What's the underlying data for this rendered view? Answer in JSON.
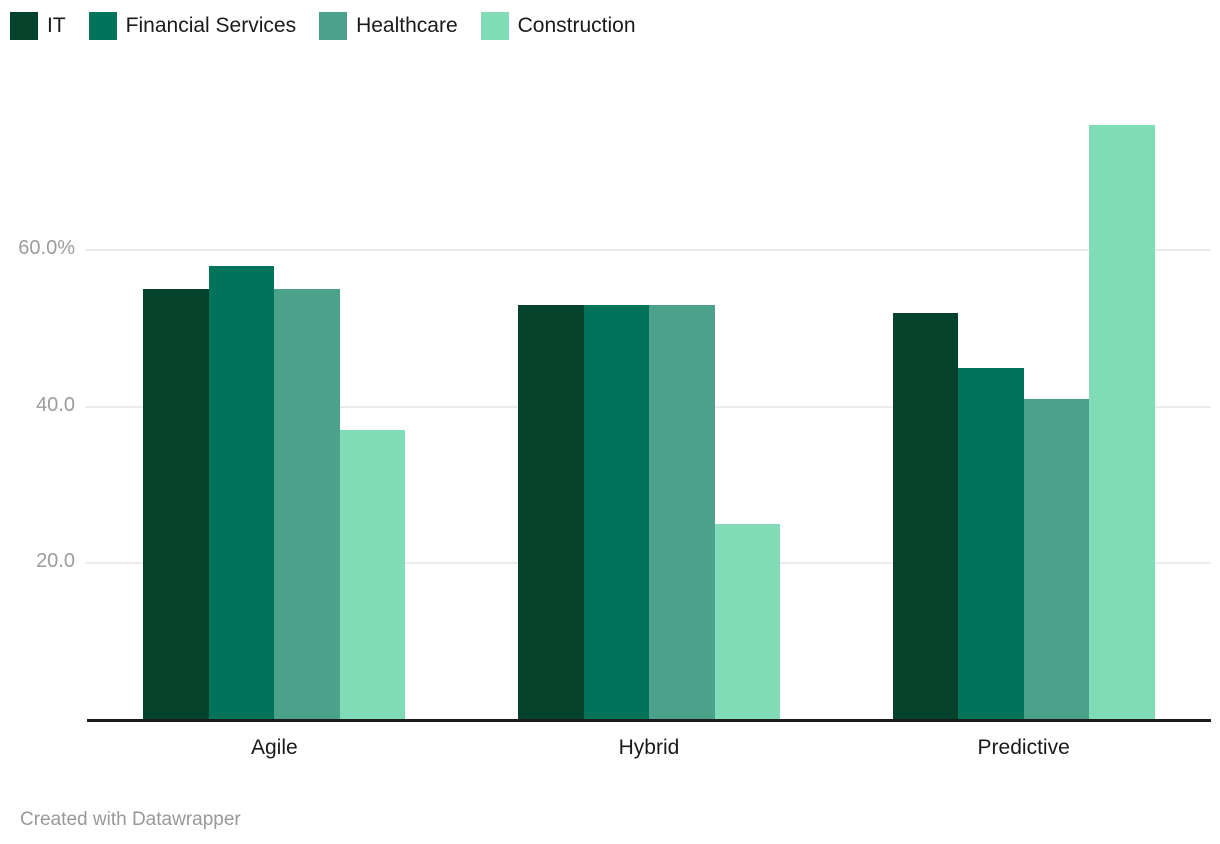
{
  "chart_data": {
    "type": "bar",
    "categories": [
      "Agile",
      "Hybrid",
      "Predictive"
    ],
    "series": [
      {
        "name": "IT",
        "color": "#04422c",
        "values": [
          55,
          53,
          52
        ]
      },
      {
        "name": "Financial Services",
        "color": "#00745b",
        "values": [
          58,
          53,
          45
        ]
      },
      {
        "name": "Healthcare",
        "color": "#4ba189",
        "values": [
          55,
          53,
          41
        ]
      },
      {
        "name": "Construction",
        "color": "#80dbb7",
        "values": [
          37,
          25,
          76
        ]
      }
    ],
    "title": "",
    "xlabel": "",
    "ylabel": "",
    "unit": "%",
    "ylim": [
      0,
      80
    ],
    "yticks": [
      {
        "value": 20,
        "label": "20.0"
      },
      {
        "value": 40,
        "label": "40.0"
      },
      {
        "value": 60,
        "label": "60.0%"
      }
    ],
    "grid": true,
    "legend_position": "top"
  },
  "footer": {
    "credit": "Created with Datawrapper"
  }
}
